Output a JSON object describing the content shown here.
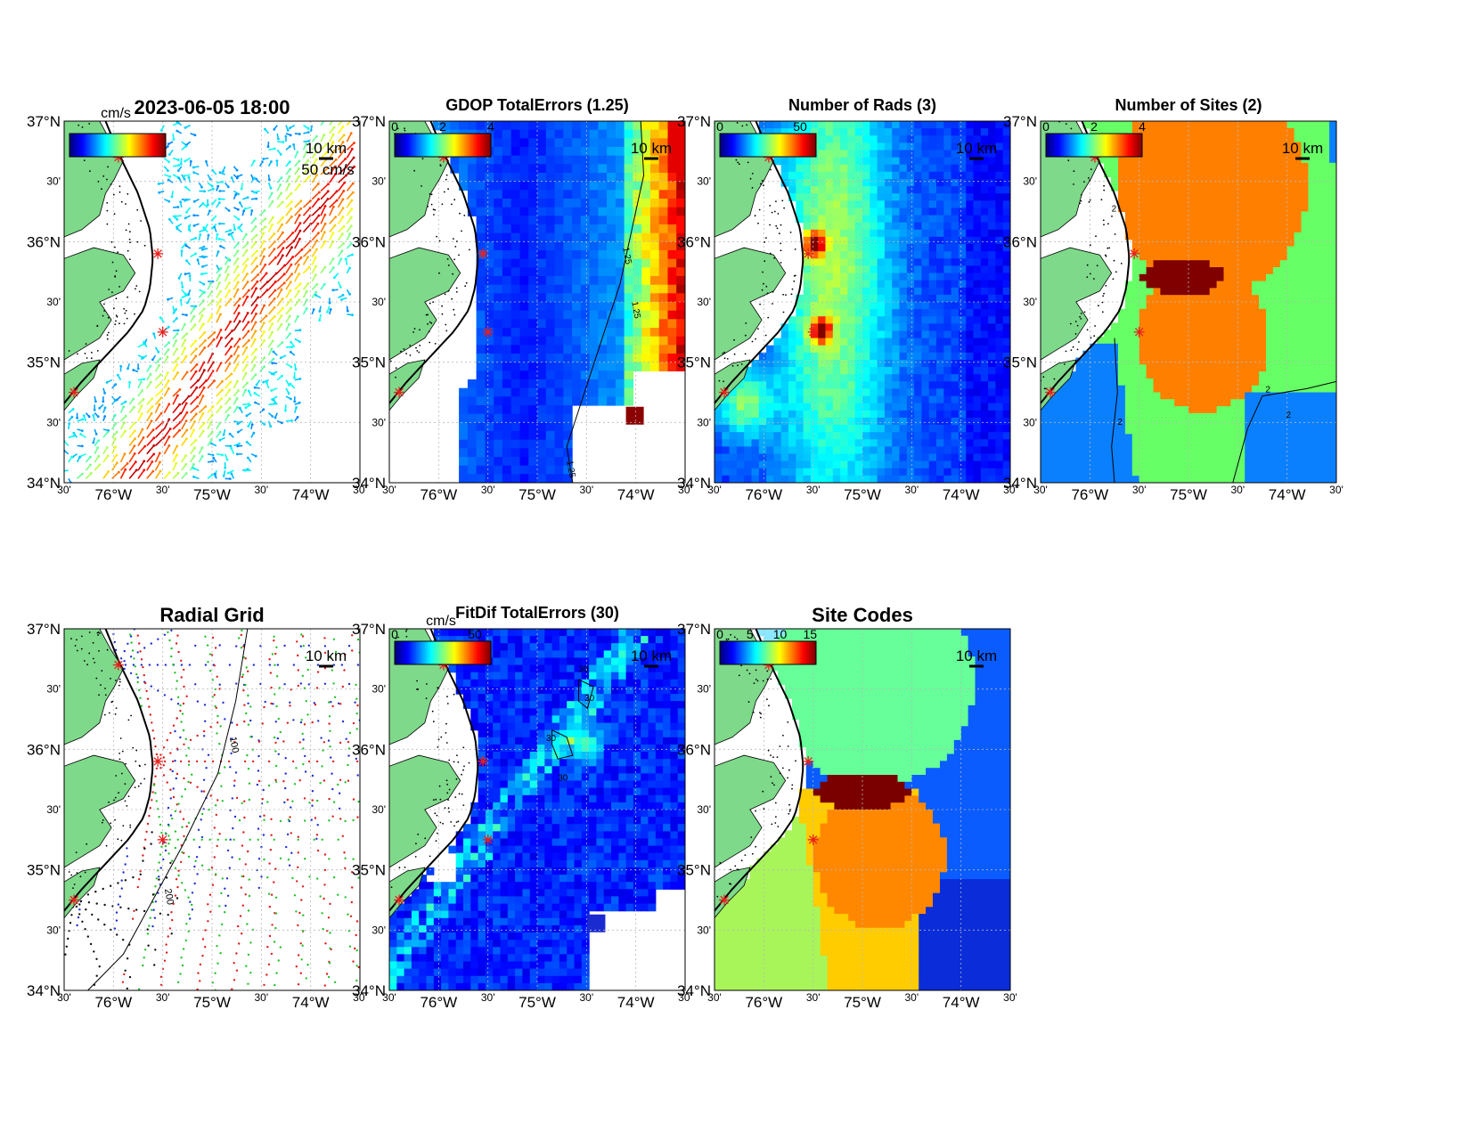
{
  "figure": {
    "panels": [
      {
        "id": "currents",
        "title": "2023-06-05 18:00",
        "colorbar": {
          "label": "cm/s",
          "ticks": [],
          "range": [
            0,
            100
          ]
        },
        "scale_bar_label": "10 km",
        "vector_label": "50 cm/s",
        "layer": "vectors"
      },
      {
        "id": "gdop",
        "title": "GDOP TotalErrors (1.25)",
        "colorbar": {
          "label": "",
          "ticks": [
            "0",
            "2",
            "4"
          ],
          "range": [
            0,
            4
          ]
        },
        "scale_bar_label": "10 km",
        "contour_labels": [
          "1.25",
          "1.25",
          "1.25"
        ],
        "layer": "gdop"
      },
      {
        "id": "rads",
        "title": "Number of Rads (3)",
        "colorbar": {
          "label": "",
          "ticks": [
            "0",
            "50"
          ],
          "range": [
            0,
            60
          ]
        },
        "scale_bar_label": "10 km",
        "layer": "rads"
      },
      {
        "id": "sites",
        "title": "Number of Sites (2)",
        "colorbar": {
          "label": "",
          "ticks": [
            "0",
            "2",
            "4"
          ],
          "range": [
            0,
            4
          ]
        },
        "scale_bar_label": "10 km",
        "contour_labels": [
          "2",
          "2",
          "2",
          "2"
        ],
        "layer": "sites"
      },
      {
        "id": "radial",
        "title": "Radial Grid",
        "colorbar": null,
        "scale_bar_label": "10 km",
        "contour_labels": [
          "100",
          "200"
        ],
        "layer": "radial"
      },
      {
        "id": "fitdif",
        "title": "FitDif TotalErrors (30)",
        "colorbar": {
          "label": "cm/s",
          "ticks": [
            "0",
            "50"
          ],
          "range": [
            0,
            60
          ]
        },
        "scale_bar_label": "10 km",
        "contour_labels": [
          "30",
          "30",
          "30",
          "30"
        ],
        "layer": "fitdif"
      },
      {
        "id": "codes",
        "title": "Site Codes",
        "colorbar": {
          "label": "",
          "ticks": [
            "0",
            "5",
            "10",
            "15"
          ],
          "range": [
            0,
            16
          ]
        },
        "scale_bar_label": "10 km",
        "layer": "codes"
      }
    ],
    "lat_ticks": [
      "37°N",
      "30'",
      "36°N",
      "30'",
      "35°N",
      "30'",
      "34°N"
    ],
    "lon_ticks": [
      "30'",
      "76°W",
      "30'",
      "75°W",
      "30'",
      "74°W",
      "30'"
    ],
    "lat_range": [
      34,
      37
    ],
    "lon_range": [
      -76.5,
      -73.5
    ],
    "sites": [
      {
        "lon": -75.95,
        "lat": 36.7
      },
      {
        "lon": -75.55,
        "lat": 35.9
      },
      {
        "lon": -75.5,
        "lat": 35.25
      },
      {
        "lon": -76.4,
        "lat": 34.75
      }
    ],
    "colors": {
      "land": "#7ed98a",
      "coast": "#000000",
      "site_marker": "#e8201c",
      "grid": "#b8b8b8",
      "radial_sites": [
        "#1f2fd0",
        "#e01c1c",
        "#22c32a",
        "#111111"
      ],
      "codes_regions": [
        "#8ce8ff",
        "#66ff99",
        "#0a5cff",
        "#7a0000",
        "#ff8800",
        "#ffcc00",
        "#a8f55a",
        "#0a2cd9"
      ],
      "sites_regions": [
        "#66ff66",
        "#ff8000",
        "#800000",
        "#0a80ff",
        "#0a20b0"
      ]
    }
  }
}
